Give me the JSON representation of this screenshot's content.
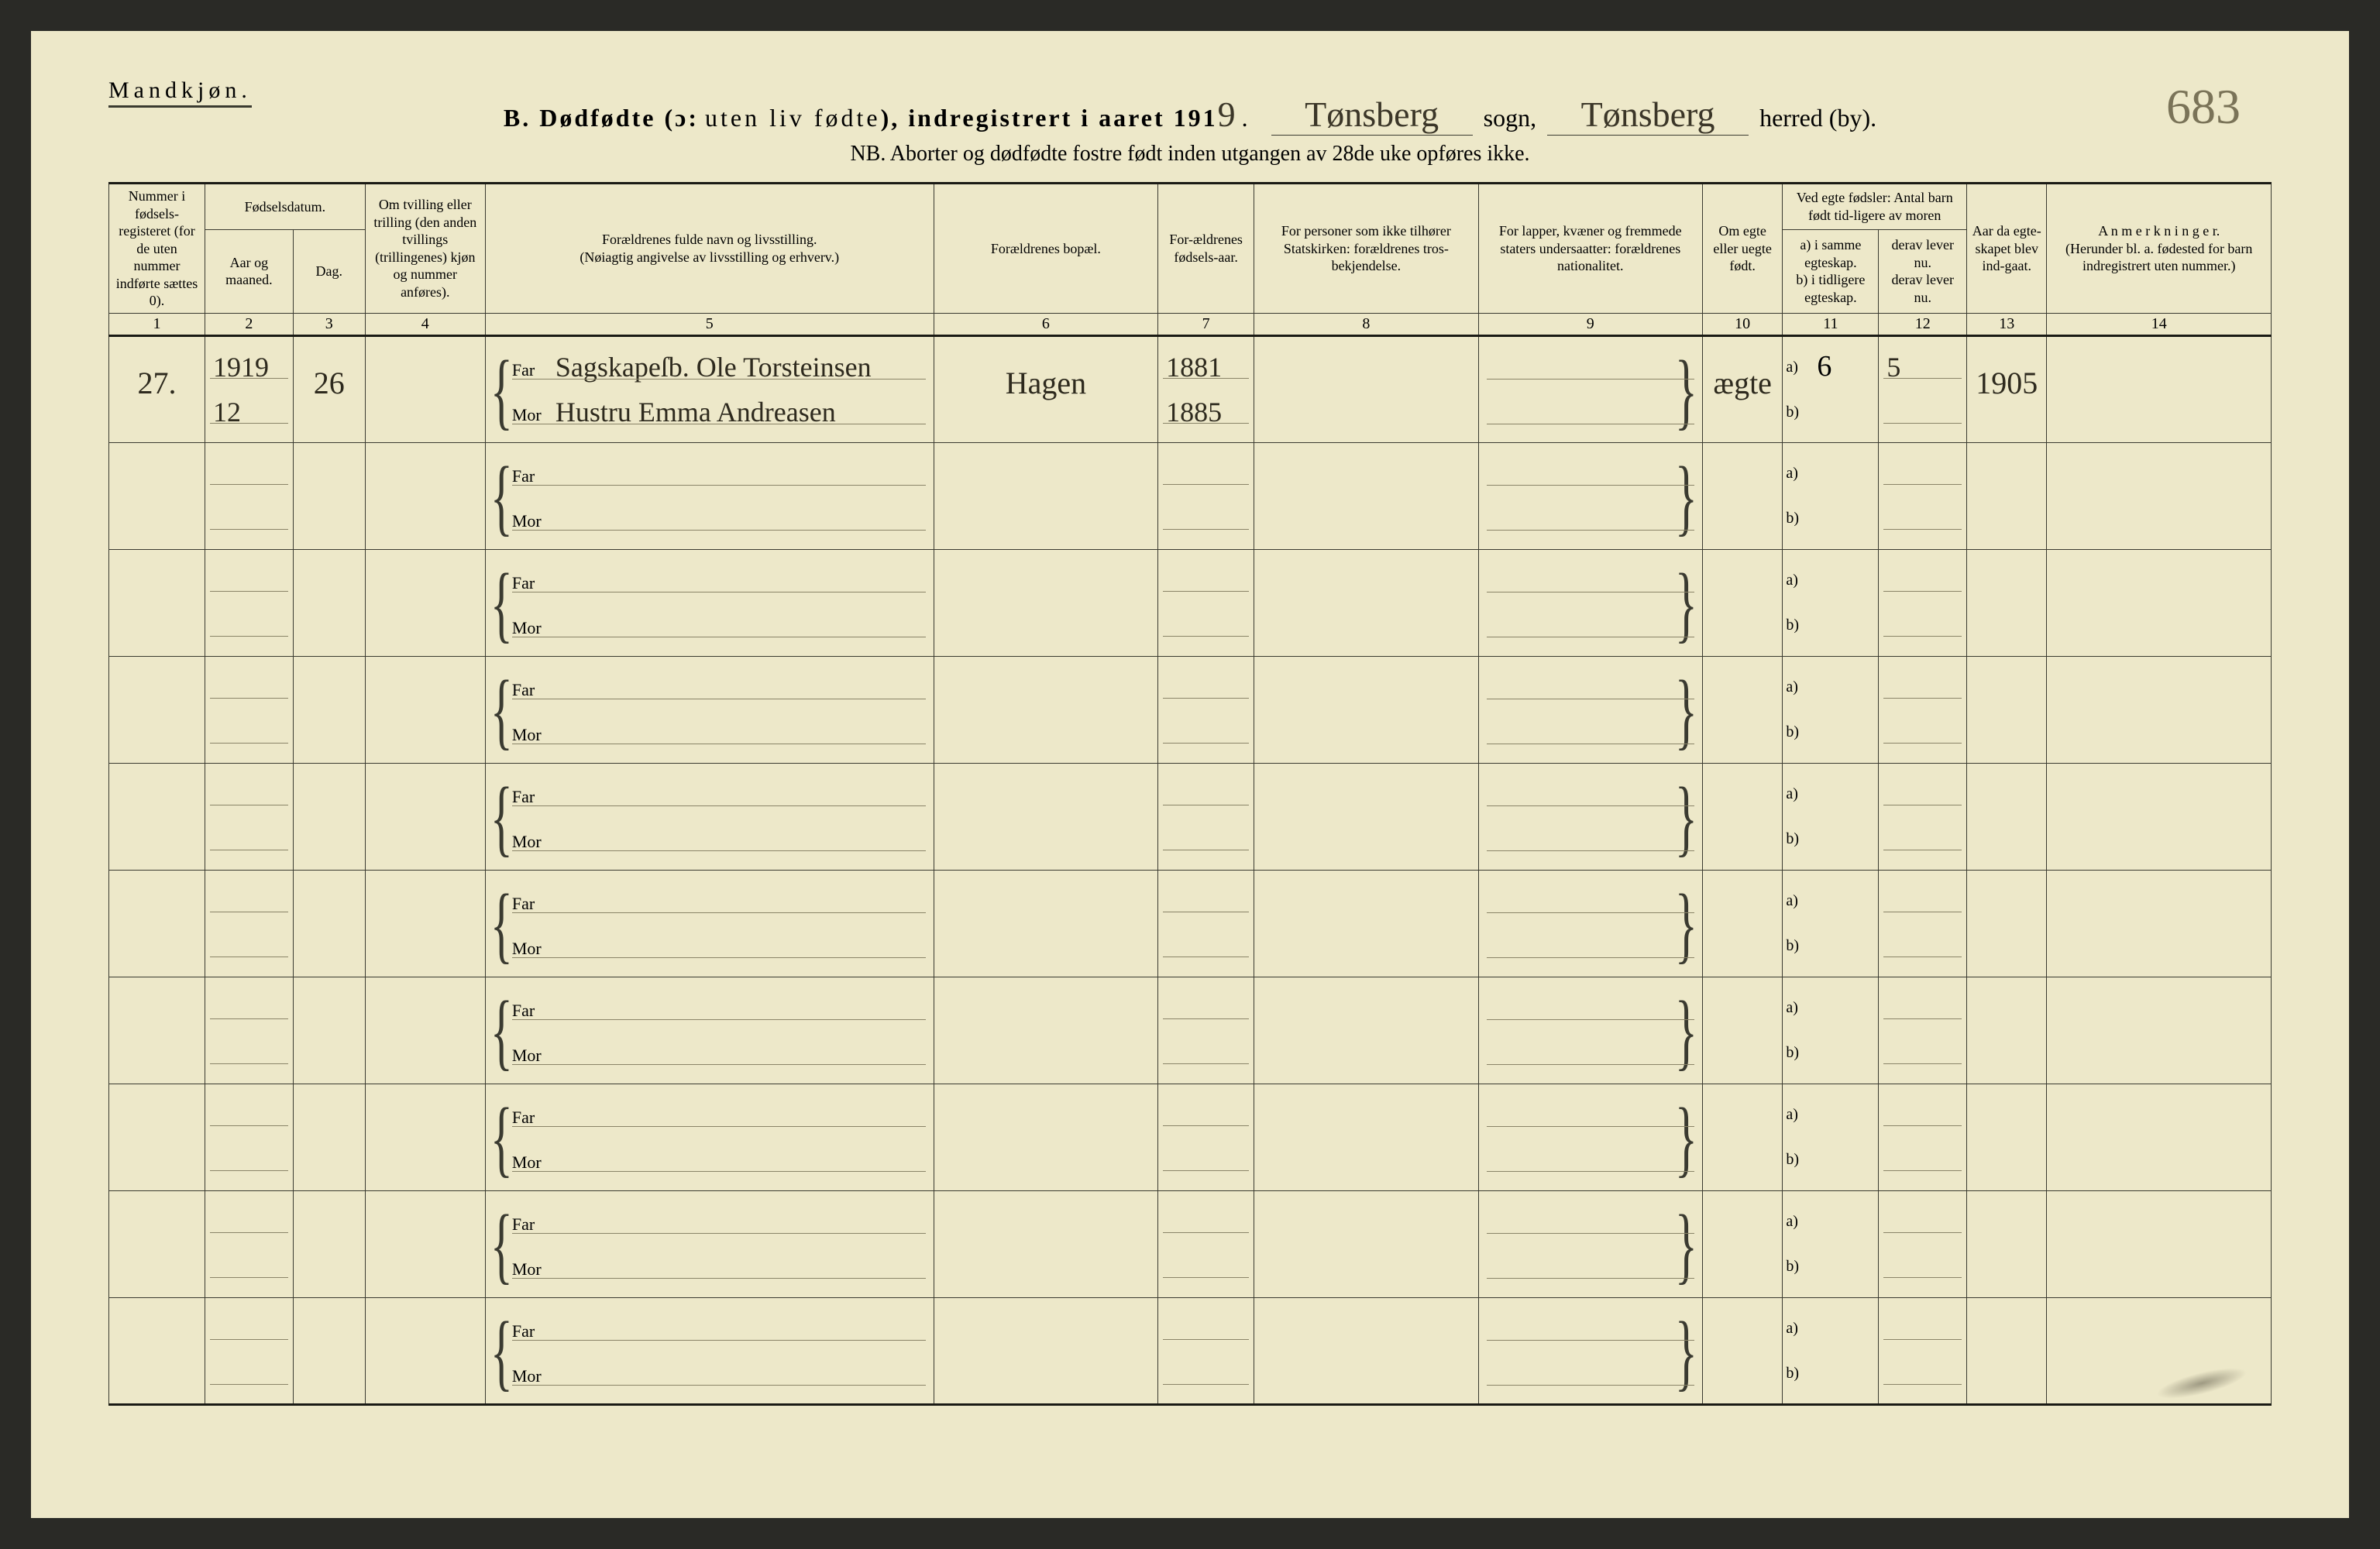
{
  "header": {
    "gender": "Mandkjøn.",
    "title_prefix": "B. Dødfødte (ɔ:",
    "title_mid": "uten liv fødte",
    "title_suffix": "), indregistrert i aaret 191",
    "year_digit": "9",
    "sogn_word": "sogn,",
    "herred_word": "herred (by).",
    "sogn_value": "Tønsberg",
    "herred_value": "Tønsberg",
    "page_number": "683",
    "nb_line": "NB.  Aborter og dødfødte fostre født inden utgangen av 28de uke opføres ikke."
  },
  "columns": {
    "c1": "Nummer i fødsels-registeret (for de uten nummer indførte sættes 0).",
    "c23_group": "Fødselsdatum.",
    "c2": "Aar og maaned.",
    "c3": "Dag.",
    "c4": "Om tvilling eller trilling (den anden tvillings (trillingenes) kjøn og nummer anføres).",
    "c5": "Forældrenes fulde navn og livsstilling.\n(Nøiagtig angivelse av livsstilling og erhverv.)",
    "c6": "Forældrenes bopæl.",
    "c7": "For-ældrenes fødsels-aar.",
    "c8": "For personer som ikke tilhører Statskirken: forældrenes tros-bekjendelse.",
    "c9": "For lapper, kvæner og fremmede staters undersaatter: forældrenes nationalitet.",
    "c10": "Om egte eller uegte født.",
    "c1112_group": "Ved egte fødsler: Antal barn født tid-ligere av moren",
    "c11": "a) i samme egteskap.\nb) i tidligere egteskap.",
    "c12": "derav lever nu.\nderav lever nu.",
    "c13": "Aar da egte-skapet blev ind-gaat.",
    "c14": "A n m e r k n i n g e r.\n(Herunder bl. a. fødested for barn indregistrert uten nummer.)",
    "row_labels": {
      "far": "Far",
      "mor": "Mor",
      "a": "a)",
      "b": "b)"
    }
  },
  "colnums": [
    "1",
    "2",
    "3",
    "4",
    "5",
    "6",
    "7",
    "8",
    "9",
    "10",
    "11",
    "12",
    "13",
    "14"
  ],
  "rows": [
    {
      "num": "27.",
      "year_month_top": "1919",
      "year_month_bot": "12",
      "day": "26",
      "twin": "",
      "far_name": "Sag​skapeſb. Ole Torsteinsen",
      "mor_name": "Hustru Emma Andreasen",
      "bopael": "Hagen",
      "year_far": "1881",
      "year_mor": "1885",
      "tros": "",
      "nat": "",
      "egte": "ægte",
      "barn_a": "6",
      "barn_b": "",
      "lever_a": "5",
      "lever_b": "",
      "egteskap_aar": "1905",
      "anm": ""
    },
    {},
    {},
    {},
    {},
    {},
    {},
    {},
    {},
    {}
  ]
}
